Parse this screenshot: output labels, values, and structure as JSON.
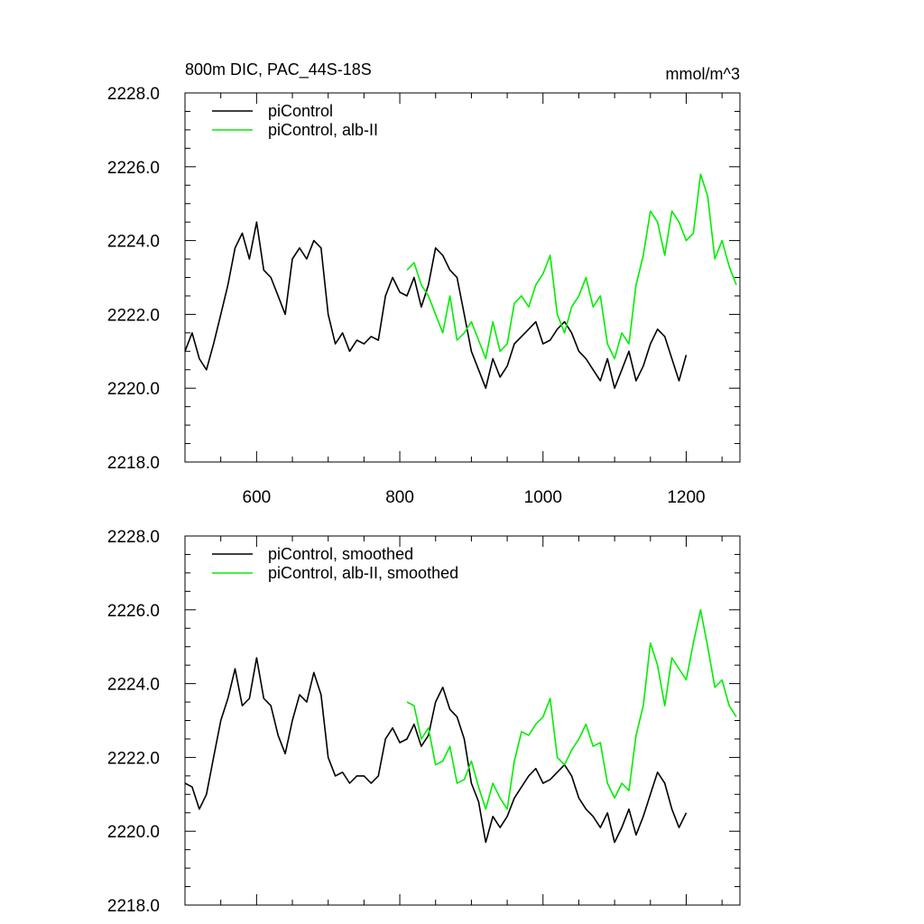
{
  "chart_data": [
    {
      "type": "line",
      "title": "800m DIC, PAC_44S-18S",
      "units": "mmol/m^3",
      "xlim": [
        500,
        1275
      ],
      "ylim": [
        2218,
        2228
      ],
      "x_ticks": [
        600,
        800,
        1000,
        1200
      ],
      "x_tick_labels": [
        "600",
        "800",
        "1000",
        "1200"
      ],
      "y_ticks": [
        2218,
        2220,
        2222,
        2224,
        2226,
        2228
      ],
      "y_tick_labels": [
        "2218.0",
        "2220.0",
        "2222.0",
        "2224.0",
        "2226.0",
        "2228.0"
      ],
      "legend_position": "top-left",
      "series": [
        {
          "name": "piControl",
          "color": "#000000",
          "x": [
            500,
            510,
            520,
            530,
            540,
            550,
            560,
            570,
            580,
            590,
            600,
            610,
            620,
            630,
            640,
            650,
            660,
            670,
            680,
            690,
            700,
            710,
            720,
            730,
            740,
            750,
            760,
            770,
            780,
            790,
            800,
            810,
            820,
            830,
            840,
            850,
            860,
            870,
            880,
            890,
            900,
            910,
            920,
            930,
            940,
            950,
            960,
            970,
            980,
            990,
            1000,
            1010,
            1020,
            1030,
            1040,
            1050,
            1060,
            1070,
            1080,
            1090,
            1100,
            1110,
            1120,
            1130,
            1140,
            1150,
            1160,
            1170,
            1180,
            1190,
            1200
          ],
          "y": [
            2221.0,
            2221.5,
            2220.8,
            2220.5,
            2221.2,
            2222.0,
            2222.8,
            2223.8,
            2224.2,
            2223.5,
            2224.5,
            2223.2,
            2223.0,
            2222.5,
            2222.0,
            2223.5,
            2223.8,
            2223.5,
            2224.0,
            2223.8,
            2222.0,
            2221.2,
            2221.5,
            2221.0,
            2221.3,
            2221.2,
            2221.4,
            2221.3,
            2222.5,
            2223.0,
            2222.6,
            2222.5,
            2223.0,
            2222.2,
            2222.8,
            2223.8,
            2223.6,
            2223.2,
            2223.0,
            2222.0,
            2221.0,
            2220.5,
            2220.0,
            2220.8,
            2220.3,
            2220.6,
            2221.2,
            2221.4,
            2221.6,
            2221.8,
            2221.2,
            2221.3,
            2221.6,
            2221.8,
            2221.5,
            2221.0,
            2220.8,
            2220.5,
            2220.2,
            2220.8,
            2220.0,
            2220.5,
            2221.0,
            2220.2,
            2220.6,
            2221.2,
            2221.6,
            2221.4,
            2220.8,
            2220.2,
            2220.9
          ]
        },
        {
          "name": "piControl, alb-II",
          "color": "#00ee00",
          "x": [
            810,
            820,
            830,
            840,
            850,
            860,
            870,
            880,
            890,
            900,
            910,
            920,
            930,
            940,
            950,
            960,
            970,
            980,
            990,
            1000,
            1010,
            1020,
            1030,
            1040,
            1050,
            1060,
            1070,
            1080,
            1090,
            1100,
            1110,
            1120,
            1130,
            1140,
            1150,
            1160,
            1170,
            1180,
            1190,
            1200,
            1210,
            1220,
            1230,
            1240,
            1250,
            1260,
            1270
          ],
          "y": [
            2223.2,
            2223.4,
            2222.8,
            2222.5,
            2222.0,
            2221.5,
            2222.5,
            2221.3,
            2221.5,
            2221.8,
            2221.3,
            2220.8,
            2221.8,
            2221.0,
            2221.2,
            2222.3,
            2222.5,
            2222.2,
            2222.8,
            2223.1,
            2223.6,
            2222.0,
            2221.5,
            2222.2,
            2222.5,
            2223.0,
            2222.2,
            2222.5,
            2221.2,
            2220.8,
            2221.5,
            2221.2,
            2222.8,
            2223.6,
            2224.8,
            2224.5,
            2223.6,
            2224.8,
            2224.5,
            2224.0,
            2224.2,
            2225.8,
            2225.2,
            2223.5,
            2224.0,
            2223.3,
            2222.8
          ]
        }
      ]
    },
    {
      "type": "line",
      "xlim": [
        500,
        1275
      ],
      "ylim": [
        2218,
        2228
      ],
      "x_ticks": [
        600,
        800,
        1000,
        1200
      ],
      "y_ticks": [
        2218,
        2220,
        2222,
        2224,
        2226,
        2228
      ],
      "y_tick_labels": [
        "2218.0",
        "2220.0",
        "2222.0",
        "2224.0",
        "2226.0",
        "2228.0"
      ],
      "legend_position": "top-left",
      "series": [
        {
          "name": "piControl, smoothed",
          "color": "#000000",
          "x": [
            500,
            510,
            520,
            530,
            540,
            550,
            560,
            570,
            580,
            590,
            600,
            610,
            620,
            630,
            640,
            650,
            660,
            670,
            680,
            690,
            700,
            710,
            720,
            730,
            740,
            750,
            760,
            770,
            780,
            790,
            800,
            810,
            820,
            830,
            840,
            850,
            860,
            870,
            880,
            890,
            900,
            910,
            920,
            930,
            940,
            950,
            960,
            970,
            980,
            990,
            1000,
            1010,
            1020,
            1030,
            1040,
            1050,
            1060,
            1070,
            1080,
            1090,
            1100,
            1110,
            1120,
            1130,
            1140,
            1150,
            1160,
            1170,
            1180,
            1190,
            1200
          ],
          "y": [
            2221.3,
            2221.2,
            2220.6,
            2221.0,
            2222.0,
            2223.0,
            2223.6,
            2224.4,
            2223.4,
            2223.6,
            2224.7,
            2223.6,
            2223.4,
            2222.6,
            2222.1,
            2223.0,
            2223.7,
            2223.5,
            2224.3,
            2223.7,
            2222.0,
            2221.5,
            2221.6,
            2221.3,
            2221.5,
            2221.5,
            2221.3,
            2221.5,
            2222.5,
            2222.8,
            2222.4,
            2222.5,
            2222.9,
            2222.3,
            2222.6,
            2223.5,
            2223.9,
            2223.3,
            2223.1,
            2222.5,
            2221.3,
            2220.8,
            2219.7,
            2220.4,
            2220.1,
            2220.4,
            2220.9,
            2221.2,
            2221.5,
            2221.7,
            2221.3,
            2221.4,
            2221.6,
            2221.8,
            2221.5,
            2220.9,
            2220.6,
            2220.4,
            2220.1,
            2220.5,
            2219.7,
            2220.1,
            2220.6,
            2219.9,
            2220.4,
            2221.0,
            2221.6,
            2221.3,
            2220.6,
            2220.1,
            2220.5
          ]
        },
        {
          "name": "piControl, alb-II, smoothed",
          "color": "#00ee00",
          "x": [
            810,
            820,
            830,
            840,
            850,
            860,
            870,
            880,
            890,
            900,
            910,
            920,
            930,
            940,
            950,
            960,
            970,
            980,
            990,
            1000,
            1010,
            1020,
            1030,
            1040,
            1050,
            1060,
            1070,
            1080,
            1090,
            1100,
            1110,
            1120,
            1130,
            1140,
            1150,
            1160,
            1170,
            1180,
            1190,
            1200,
            1210,
            1220,
            1230,
            1240,
            1250,
            1260,
            1270
          ],
          "y": [
            2223.5,
            2223.4,
            2222.5,
            2222.8,
            2221.8,
            2221.9,
            2222.3,
            2221.3,
            2221.4,
            2221.9,
            2221.2,
            2220.6,
            2221.3,
            2220.9,
            2220.6,
            2221.9,
            2222.7,
            2222.6,
            2222.9,
            2223.1,
            2223.6,
            2222.0,
            2221.8,
            2222.2,
            2222.5,
            2222.9,
            2222.3,
            2222.4,
            2221.3,
            2220.9,
            2221.3,
            2221.1,
            2222.6,
            2223.4,
            2225.1,
            2224.5,
            2223.4,
            2224.7,
            2224.4,
            2224.1,
            2225.1,
            2226.0,
            2225.0,
            2223.9,
            2224.1,
            2223.4,
            2223.1
          ]
        }
      ]
    }
  ]
}
